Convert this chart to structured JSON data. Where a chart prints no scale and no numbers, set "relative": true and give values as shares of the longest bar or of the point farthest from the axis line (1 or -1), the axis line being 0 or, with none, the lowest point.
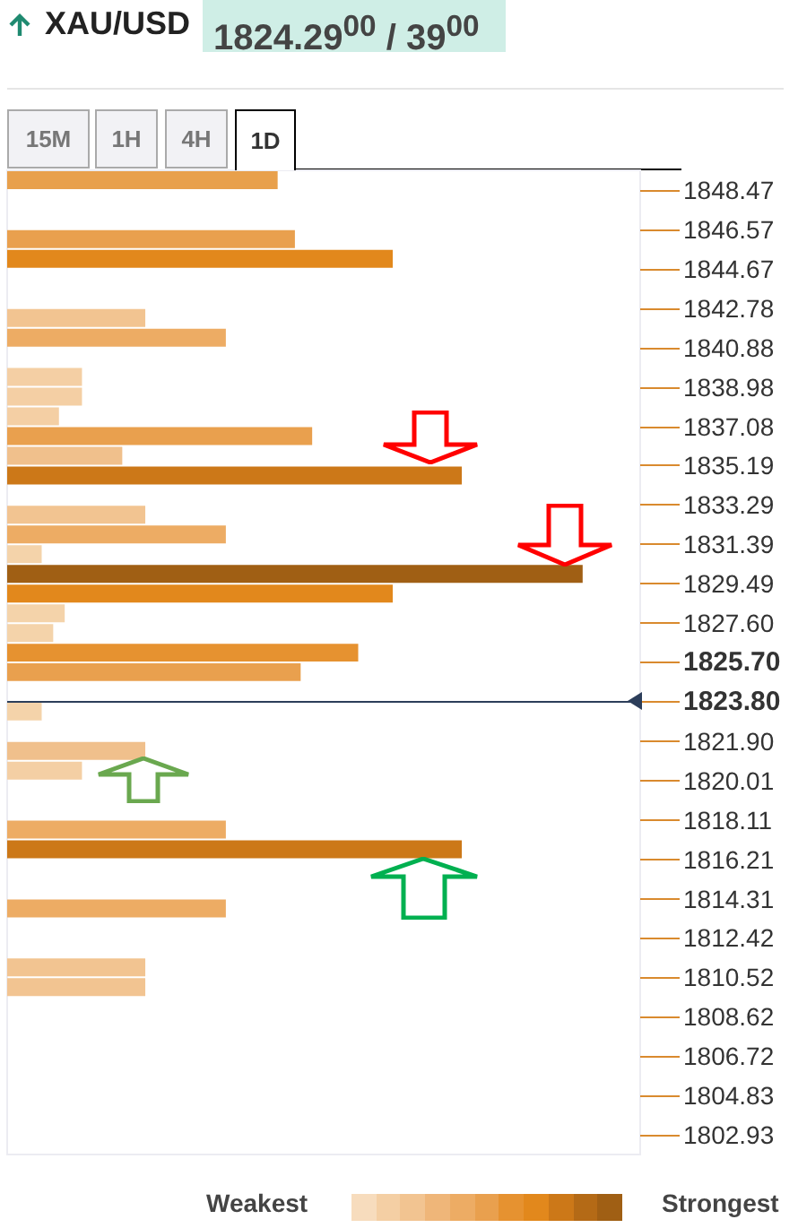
{
  "chart_data": {
    "type": "bar",
    "orientation": "horizontal",
    "relative": true,
    "title": "XAU/USD",
    "subtitle": "1824.29$^{00}$ / 39$^{00}$",
    "x": [
      1848.94,
      1846.1,
      1845.15,
      1842.3,
      1841.35,
      1839.46,
      1838.51,
      1837.56,
      1836.61,
      1835.66,
      1834.71,
      1832.82,
      1831.87,
      1830.92,
      1829.97,
      1829.02,
      1828.07,
      1827.12,
      1826.17,
      1825.23,
      1823.33,
      1821.43,
      1820.48,
      1817.64,
      1816.69,
      1813.84,
      1811.0,
      1810.05
    ],
    "values": [
      0.47,
      0.5,
      0.67,
      0.24,
      0.38,
      0.13,
      0.13,
      0.09,
      0.53,
      0.2,
      0.79,
      0.24,
      0.38,
      0.06,
      1,
      0.67,
      0.1,
      0.08,
      0.61,
      0.51,
      0.06,
      0.24,
      0.13,
      0.38,
      0.79,
      0.38,
      0.24,
      0.24
    ],
    "colors": [
      "#e8a04c",
      "#e9a04e",
      "#e2881c",
      "#f2c491",
      "#edac64",
      "#f4cfa4",
      "#f4cfa4",
      "#f4cfa4",
      "#e9a04e",
      "#f0c08c",
      "#cc7818",
      "#f2c491",
      "#edac64",
      "#f4d3aa",
      "#a05f14",
      "#e2881c",
      "#f4d3aa",
      "#f4d3aa",
      "#e69230",
      "#e9a04e",
      "#f4d3aa",
      "#f0c08c",
      "#f4cfa4",
      "#edac64",
      "#cc7818",
      "#edac64",
      "#f2c491",
      "#f2c491"
    ],
    "ylim": [
      1801.98,
      1849.42
    ],
    "yticks": [
      1848.47,
      1846.57,
      1844.67,
      1842.78,
      1840.88,
      1838.98,
      1837.08,
      1835.19,
      1833.29,
      1831.39,
      1829.49,
      {
        "value": 1827.6,
        "label": "1827.60"
      },
      {
        "value": 1825.7,
        "label": "1825.70"
      },
      {
        "value": 1823.8,
        "label": "1823.80"
      },
      {
        "value": 1821.9,
        "label": "1821.90"
      },
      1820.01,
      1818.11,
      1816.21,
      1814.31,
      1812.42,
      1810.52,
      1808.62,
      1806.72,
      1804.83,
      1802.93
    ],
    "ref_lines": [
      {
        "axis": "y",
        "value": 1823.8,
        "color": "#2c3e5a"
      }
    ],
    "annotations": [
      "15M",
      "1H",
      "4H",
      "1D",
      "Weakest",
      "Strongest"
    ]
  }
}
